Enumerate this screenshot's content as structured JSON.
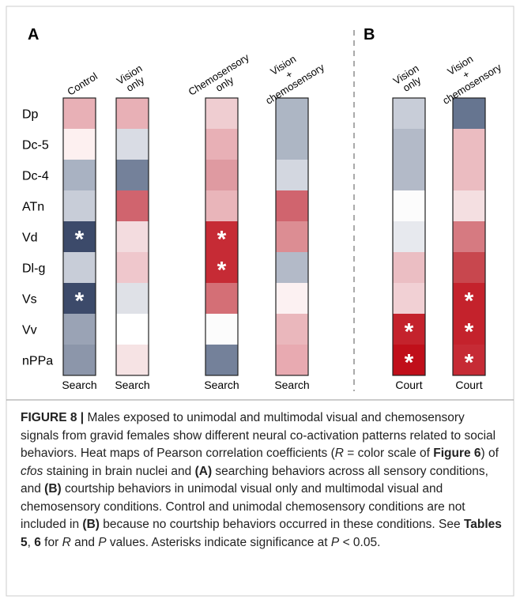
{
  "panels": [
    {
      "letter": "A",
      "columns": [
        {
          "header": [
            "Control"
          ],
          "footer": "Search",
          "cells": [
            {
              "color": "#e8b0b6"
            },
            {
              "color": "#fdf0f0"
            },
            {
              "color": "#a9b2c2"
            },
            {
              "color": "#c8cdd8"
            },
            {
              "color": "#3c4a6a",
              "mark": "*"
            },
            {
              "color": "#c8cdd8"
            },
            {
              "color": "#3c4a6a",
              "mark": "*"
            },
            {
              "color": "#9aa3b5"
            },
            {
              "color": "#8c96aa"
            }
          ]
        },
        {
          "header": [
            "Vision",
            "only"
          ],
          "footer": "Search",
          "cells": [
            {
              "color": "#e8b0b6"
            },
            {
              "color": "#d9dce4"
            },
            {
              "color": "#74819a"
            },
            {
              "color": "#d0646e"
            },
            {
              "color": "#f3dcdf"
            },
            {
              "color": "#efc7cc"
            },
            {
              "color": "#dfe1e7"
            },
            {
              "color": "#ffffff"
            },
            {
              "color": "#f6e3e4"
            }
          ]
        },
        {
          "header": [
            "Chemosensory",
            "only"
          ],
          "footer": "Search",
          "cells": [
            {
              "color": "#efcdd1"
            },
            {
              "color": "#e8b0b6"
            },
            {
              "color": "#df9aa1"
            },
            {
              "color": "#e9b5ba"
            },
            {
              "color": "#c62b35",
              "mark": "*"
            },
            {
              "color": "#c62b35",
              "mark": "*"
            },
            {
              "color": "#d46f76"
            },
            {
              "color": "#fcfcfc"
            },
            {
              "color": "#74819a"
            }
          ]
        },
        {
          "header": [
            "Vision",
            "+",
            "chemosensory"
          ],
          "footer": "Search",
          "cells": [
            {
              "color": "#adb6c4"
            },
            {
              "color": "#adb6c4"
            },
            {
              "color": "#d3d7e0"
            },
            {
              "color": "#d0646e"
            },
            {
              "color": "#dc8d93"
            },
            {
              "color": "#b3bac8"
            },
            {
              "color": "#fcf1f2"
            },
            {
              "color": "#eab7bc"
            },
            {
              "color": "#e8aab1"
            }
          ]
        }
      ]
    },
    {
      "letter": "B",
      "columns": [
        {
          "header": [
            "Vision",
            "only"
          ],
          "footer": "Court",
          "cells": [
            {
              "color": "#c8cdd8"
            },
            {
              "color": "#b3bac8"
            },
            {
              "color": "#b3bac8"
            },
            {
              "color": "#fcfcfc"
            },
            {
              "color": "#e7e9ee"
            },
            {
              "color": "#ebbec3"
            },
            {
              "color": "#f1d0d4"
            },
            {
              "color": "#c4222c",
              "mark": "*"
            },
            {
              "color": "#c00f1a",
              "mark": "*"
            }
          ]
        },
        {
          "header": [
            "Vision",
            "+",
            "chemosensory"
          ],
          "footer": "Court",
          "cells": [
            {
              "color": "#667590"
            },
            {
              "color": "#ebbcc1"
            },
            {
              "color": "#ebbcc1"
            },
            {
              "color": "#f4dfe1"
            },
            {
              "color": "#d67a81"
            },
            {
              "color": "#c8474e"
            },
            {
              "color": "#c4222c",
              "mark": "*"
            },
            {
              "color": "#c4222c",
              "mark": "*"
            },
            {
              "color": "#c62b35",
              "mark": "*"
            }
          ]
        }
      ]
    }
  ],
  "rows": [
    "Dp",
    "Dc-5",
    "Dc-4",
    "ATn",
    "Vd",
    "Dl-g",
    "Vs",
    "Vv",
    "nPPa"
  ],
  "caption": [
    {
      "text": "FIGURE 8 | ",
      "style": "b"
    },
    {
      "text": "Males exposed to unimodal and multimodal visual and chemosensory signals from gravid females show different neural co-activation patterns related to social behaviors. Heat maps of Pearson correlation coefficients ("
    },
    {
      "text": "R",
      "style": "i"
    },
    {
      "text": " = color scale of "
    },
    {
      "text": "Figure 6",
      "style": "b"
    },
    {
      "text": ") of "
    },
    {
      "text": "cfos",
      "style": "i"
    },
    {
      "text": " staining in brain nuclei and "
    },
    {
      "text": "(A)",
      "style": "b"
    },
    {
      "text": " searching behaviors across all sensory conditions, and "
    },
    {
      "text": "(B)",
      "style": "b"
    },
    {
      "text": " courtship behaviors in unimodal visual only and multimodal visual and chemosensory conditions. Control and unimodal chemosensory conditions are not included in "
    },
    {
      "text": "(B)",
      "style": "b"
    },
    {
      "text": " because no courtship behaviors occurred in these conditions. See "
    },
    {
      "text": "Tables 5",
      "style": "b"
    },
    {
      "text": ", "
    },
    {
      "text": "6",
      "style": "b"
    },
    {
      "text": " for "
    },
    {
      "text": "R",
      "style": "i"
    },
    {
      "text": " and "
    },
    {
      "text": "P",
      "style": "i"
    },
    {
      "text": " values. Asterisks indicate significance at "
    },
    {
      "text": "P",
      "style": "i"
    },
    {
      "text": " < 0.05."
    }
  ]
}
